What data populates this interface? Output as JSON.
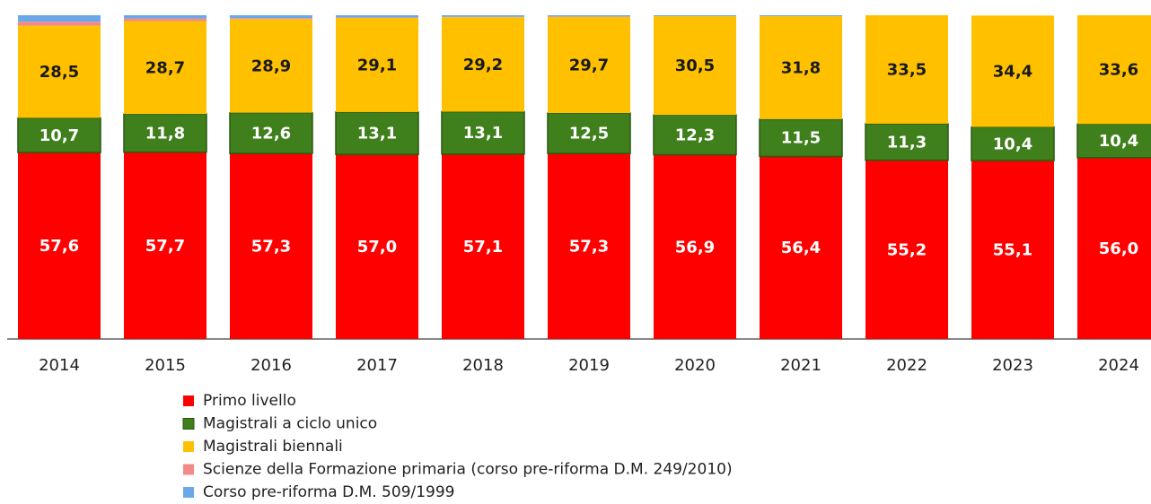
{
  "chart_data": {
    "type": "stacked_bar",
    "categories": [
      "2014",
      "2015",
      "2016",
      "2017",
      "2018",
      "2019",
      "2020",
      "2021",
      "2022",
      "2023",
      "2024"
    ],
    "ylim": [
      0,
      100
    ],
    "series": [
      {
        "name": "Primo livello",
        "color": "#ff0000",
        "label_color": "#ffffff",
        "values": [
          57.6,
          57.7,
          57.3,
          57.0,
          57.1,
          57.3,
          56.9,
          56.4,
          55.2,
          55.1,
          56.0
        ],
        "value_labels": [
          "57,6",
          "57,7",
          "57,3",
          "57,0",
          "57,1",
          "57,3",
          "56,9",
          "56,4",
          "55,2",
          "55,1",
          "56,0"
        ]
      },
      {
        "name": "Magistrali a ciclo unico",
        "color": "#3f7f1c",
        "label_color": "#ffffff",
        "values": [
          10.7,
          11.8,
          12.6,
          13.1,
          13.1,
          12.5,
          12.3,
          11.5,
          11.3,
          10.4,
          10.4
        ],
        "value_labels": [
          "10,7",
          "11,8",
          "12,6",
          "13,1",
          "13,1",
          "12,5",
          "12,3",
          "11,5",
          "11,3",
          "10,4",
          "10,4"
        ]
      },
      {
        "name": "Magistrali biennali",
        "color": "#ffc000",
        "label_color": "#1a1a1a",
        "values": [
          28.5,
          28.7,
          28.9,
          29.1,
          29.2,
          29.7,
          30.5,
          31.8,
          33.5,
          34.4,
          33.6
        ],
        "value_labels": [
          "28,5",
          "28,7",
          "28,9",
          "29,1",
          "29,2",
          "29,7",
          "30,5",
          "31,8",
          "33,5",
          "34,4",
          "33,6"
        ]
      },
      {
        "name": "Scienze della Formazione primaria (corso pre-riforma D.M. 249/2010)",
        "color": "#f4898a",
        "values": [
          1.2,
          0.8,
          0.3,
          0.1,
          0.1,
          0.1,
          0,
          0,
          0,
          0,
          0
        ]
      },
      {
        "name": "Corso pre-riforma D.M. 509/1999",
        "color": "#6aa8e8",
        "values": [
          2.0,
          1.0,
          0.9,
          0.7,
          0.5,
          0.4,
          0.3,
          0.3,
          0,
          0,
          0
        ]
      }
    ]
  }
}
